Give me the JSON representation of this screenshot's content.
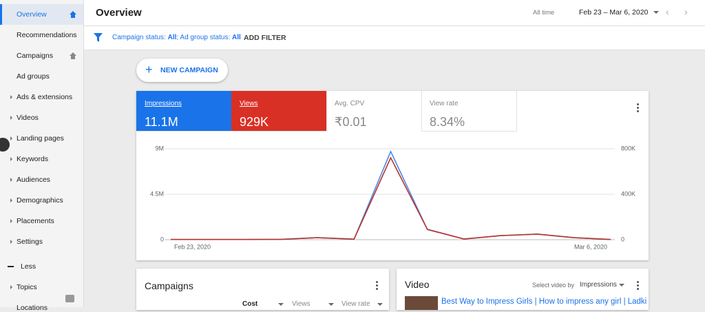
{
  "nav": {
    "items": [
      "Overview",
      "Recommendations",
      "Campaigns",
      "Ad groups",
      "Ads & extensions",
      "Videos",
      "Landing pages",
      "Keywords",
      "Audiences",
      "Demographics",
      "Placements",
      "Settings"
    ],
    "less": "Less",
    "more_items": [
      "Topics",
      "Locations"
    ]
  },
  "header": {
    "title": "Overview",
    "range_label": "All time",
    "date_range": "Feb 23 – Mar 6, 2020"
  },
  "filter": {
    "parts": [
      "Campaign status: ",
      "All",
      "; Ad group status: ",
      "All"
    ],
    "add_filter": "ADD FILTER"
  },
  "new_campaign": "NEW CAMPAIGN",
  "scorecards": [
    {
      "value": "11.1M"
    },
    {
      "value": "929K"
    },
    {
      "label": "Avg. CPV",
      "value": "₹0.01"
    },
    {
      "label": "View rate",
      "value": "8.34%"
    }
  ],
  "chart_data": {
    "type": "line",
    "categories": [
      "Feb 23, 2020",
      null,
      null,
      null,
      null,
      null,
      null,
      null,
      null,
      null,
      null,
      null,
      "Mar 6, 2020"
    ],
    "series": [
      {
        "name": "Impressions",
        "color": "#4a86e8",
        "values": [
          20000,
          20000,
          20000,
          30000,
          200000,
          50000,
          8730000,
          1000000,
          70000,
          400000,
          550000,
          200000,
          20000
        ]
      },
      {
        "name": "Views",
        "color": "#b8332c",
        "axis": "y2",
        "values": [
          2000,
          2000,
          2000,
          3000,
          18000,
          5000,
          721000,
          91000,
          6000,
          36000,
          49000,
          18000,
          2000
        ]
      }
    ],
    "ylim": [
      0,
      9000000
    ],
    "yticks": [
      0,
      {
        "value": 4500000,
        "label": "4.5M"
      },
      {
        "value": 9000000,
        "label": "9M"
      }
    ],
    "y2lim": [
      0,
      800000
    ],
    "y2ticks": [
      0,
      {
        "value": 400000,
        "label": "400K"
      },
      {
        "value": 800000,
        "label": "800K"
      }
    ],
    "grid": true
  },
  "campaigns_card": {
    "title": "Campaigns",
    "columns": [
      "Cost",
      "Views",
      "View rate"
    ]
  },
  "video_card": {
    "title": "Video",
    "select_label": "Select video by",
    "select_value": "Impressions",
    "video_title": "Best Way to Impress Girls | How to impress any girl | Ladki"
  }
}
